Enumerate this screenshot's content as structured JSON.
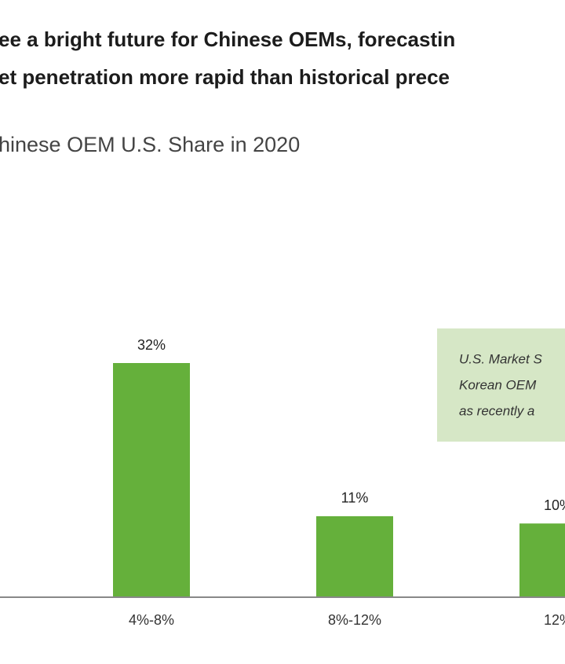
{
  "chart_data": {
    "type": "bar",
    "title": [
      "ee a bright future for Chinese OEMs, forecastin",
      "et penetration more rapid than historical prece"
    ],
    "subtitle": "hinese OEM U.S. Share in 2020",
    "annotation": [
      "U.S. Market S",
      "Korean OEM",
      "as recently a"
    ],
    "categories": [
      "4%-8%",
      "8%-12%",
      "12%"
    ],
    "values": [
      32,
      11,
      10
    ],
    "value_labels": [
      "32%",
      "11%",
      "10%"
    ],
    "color": "#65b03b"
  }
}
